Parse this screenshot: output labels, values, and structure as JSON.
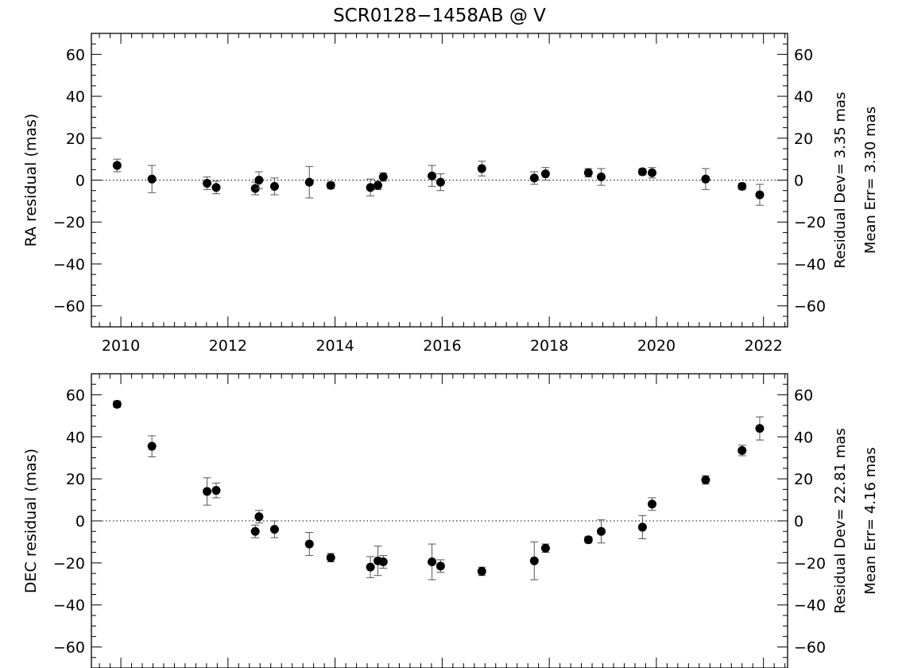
{
  "title": "SCR0128−1458AB @ V",
  "chart_data": [
    {
      "type": "scatter",
      "ylabel": "RA residual (mas)",
      "xlim": [
        2009.45,
        2022.45
      ],
      "ylim": [
        -70,
        70
      ],
      "xticks": [
        2010,
        2012,
        2014,
        2016,
        2018,
        2020,
        2022
      ],
      "xticklabels": [
        "2010",
        "2012",
        "2014",
        "2016",
        "2018",
        "2020",
        "2022"
      ],
      "show_xticklabels": true,
      "yticks": [
        -60,
        -40,
        -20,
        0,
        20,
        40,
        60
      ],
      "yticklabels": [
        "−60",
        "−40",
        "−20",
        "0",
        "20",
        "40",
        "60"
      ],
      "residual_dev_text": "Residual Dev=   3.35  mas",
      "mean_err_text": "Mean Err=  3.30  mas",
      "points": [
        {
          "x": 2009.93,
          "y": 7,
          "err": 3
        },
        {
          "x": 2010.58,
          "y": 0.5,
          "err": 6.5
        },
        {
          "x": 2011.61,
          "y": -1.5,
          "err": 3
        },
        {
          "x": 2011.78,
          "y": -3.5,
          "err": 3
        },
        {
          "x": 2012.51,
          "y": -4,
          "err": 3
        },
        {
          "x": 2012.58,
          "y": 0,
          "err": 4
        },
        {
          "x": 2012.87,
          "y": -3,
          "err": 4
        },
        {
          "x": 2013.52,
          "y": -1,
          "err": 7.5
        },
        {
          "x": 2013.92,
          "y": -2.5,
          "err": 1.5
        },
        {
          "x": 2014.66,
          "y": -3.5,
          "err": 4
        },
        {
          "x": 2014.8,
          "y": -2.5,
          "err": 2
        },
        {
          "x": 2014.9,
          "y": 1.5,
          "err": 2
        },
        {
          "x": 2015.81,
          "y": 2,
          "err": 5
        },
        {
          "x": 2015.97,
          "y": -1,
          "err": 4
        },
        {
          "x": 2016.74,
          "y": 5.5,
          "err": 3.5
        },
        {
          "x": 2017.72,
          "y": 1,
          "err": 3
        },
        {
          "x": 2017.93,
          "y": 3,
          "err": 3
        },
        {
          "x": 2018.73,
          "y": 3.5,
          "err": 2
        },
        {
          "x": 2018.97,
          "y": 1.5,
          "err": 4
        },
        {
          "x": 2019.74,
          "y": 4,
          "err": 1.5
        },
        {
          "x": 2019.92,
          "y": 3.5,
          "err": 2.5
        },
        {
          "x": 2020.92,
          "y": 0.5,
          "err": 5
        },
        {
          "x": 2021.6,
          "y": -3,
          "err": 1.5
        },
        {
          "x": 2021.93,
          "y": -7,
          "err": 5
        }
      ]
    },
    {
      "type": "scatter",
      "ylabel": "DEC residual (mas)",
      "xlim": [
        2009.45,
        2022.45
      ],
      "ylim": [
        -70,
        70
      ],
      "xticks": [
        2010,
        2012,
        2014,
        2016,
        2018,
        2020,
        2022
      ],
      "xticklabels": [
        "2010",
        "2012",
        "2014",
        "2016",
        "2018",
        "2020",
        "2022"
      ],
      "show_xticklabels": false,
      "yticks": [
        -60,
        -40,
        -20,
        0,
        20,
        40,
        60
      ],
      "yticklabels": [
        "−60",
        "−40",
        "−20",
        "0",
        "20",
        "40",
        "60"
      ],
      "residual_dev_text": "Residual Dev=  22.81  mas",
      "mean_err_text": "Mean Err=  4.16  mas",
      "points": [
        {
          "x": 2009.93,
          "y": 55.5,
          "err": 1.5
        },
        {
          "x": 2010.58,
          "y": 35.5,
          "err": 5
        },
        {
          "x": 2011.61,
          "y": 14,
          "err": 6.5
        },
        {
          "x": 2011.78,
          "y": 14.5,
          "err": 3.5
        },
        {
          "x": 2012.51,
          "y": -5,
          "err": 3
        },
        {
          "x": 2012.58,
          "y": 2,
          "err": 3
        },
        {
          "x": 2012.87,
          "y": -4,
          "err": 4
        },
        {
          "x": 2013.52,
          "y": -11,
          "err": 5.5
        },
        {
          "x": 2013.92,
          "y": -17.5,
          "err": 2
        },
        {
          "x": 2014.66,
          "y": -22,
          "err": 5
        },
        {
          "x": 2014.8,
          "y": -19,
          "err": 7
        },
        {
          "x": 2014.9,
          "y": -19.5,
          "err": 3
        },
        {
          "x": 2015.81,
          "y": -19.5,
          "err": 8.5
        },
        {
          "x": 2015.97,
          "y": -21.5,
          "err": 3
        },
        {
          "x": 2016.74,
          "y": -24,
          "err": 2
        },
        {
          "x": 2017.72,
          "y": -19,
          "err": 9
        },
        {
          "x": 2017.93,
          "y": -13,
          "err": 2
        },
        {
          "x": 2018.73,
          "y": -9,
          "err": 1.5
        },
        {
          "x": 2018.97,
          "y": -5,
          "err": 5.5
        },
        {
          "x": 2019.74,
          "y": -3,
          "err": 5.5
        },
        {
          "x": 2019.92,
          "y": 8,
          "err": 3
        },
        {
          "x": 2020.92,
          "y": 19.5,
          "err": 2
        },
        {
          "x": 2021.6,
          "y": 33.5,
          "err": 2.5
        },
        {
          "x": 2021.93,
          "y": 44,
          "err": 5.5
        }
      ]
    }
  ]
}
